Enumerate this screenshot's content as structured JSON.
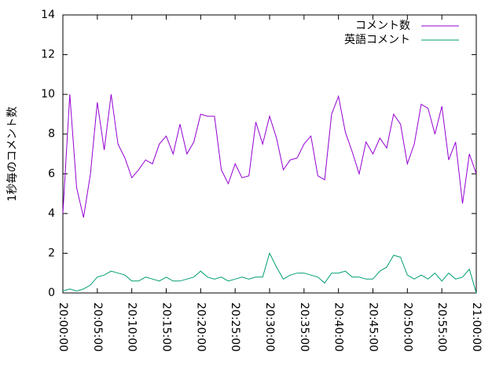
{
  "chart_data": {
    "type": "line",
    "y_label": "1秒毎のコメント数",
    "x": [
      "20:00:00",
      "20:01:00",
      "20:02:00",
      "20:03:00",
      "20:04:00",
      "20:05:00",
      "20:06:00",
      "20:07:00",
      "20:08:00",
      "20:09:00",
      "20:10:00",
      "20:11:00",
      "20:12:00",
      "20:13:00",
      "20:14:00",
      "20:15:00",
      "20:16:00",
      "20:17:00",
      "20:18:00",
      "20:19:00",
      "20:20:00",
      "20:21:00",
      "20:22:00",
      "20:23:00",
      "20:24:00",
      "20:25:00",
      "20:26:00",
      "20:27:00",
      "20:28:00",
      "20:29:00",
      "20:30:00",
      "20:31:00",
      "20:32:00",
      "20:33:00",
      "20:34:00",
      "20:35:00",
      "20:36:00",
      "20:37:00",
      "20:38:00",
      "20:39:00",
      "20:40:00",
      "20:41:00",
      "20:42:00",
      "20:43:00",
      "20:44:00",
      "20:45:00",
      "20:46:00",
      "20:47:00",
      "20:48:00",
      "20:49:00",
      "20:50:00",
      "20:51:00",
      "20:52:00",
      "20:53:00",
      "20:54:00",
      "20:55:00",
      "20:56:00",
      "20:57:00",
      "20:58:00",
      "20:59:00",
      "21:00:00"
    ],
    "series": [
      {
        "name": "コメント数",
        "color": "#9400d3",
        "values": [
          4.0,
          10.0,
          5.3,
          3.8,
          6.0,
          9.6,
          7.2,
          10.0,
          7.5,
          6.8,
          5.8,
          6.2,
          6.7,
          6.5,
          7.5,
          7.9,
          7.0,
          8.5,
          7.0,
          7.6,
          9.0,
          8.9,
          8.9,
          6.2,
          5.5,
          6.5,
          5.8,
          5.9,
          8.6,
          7.5,
          8.9,
          7.8,
          6.2,
          6.7,
          6.8,
          7.5,
          7.9,
          5.9,
          5.7,
          9.0,
          9.9,
          8.1,
          7.1,
          6.0,
          7.6,
          7.0,
          7.8,
          7.3,
          9.0,
          8.5,
          6.5,
          7.5,
          9.5,
          9.3,
          8.0,
          9.4,
          6.7,
          7.6,
          4.5,
          7.0,
          6.0
        ]
      },
      {
        "name": "英語コメント",
        "color": "#009e73",
        "values": [
          0.1,
          0.2,
          0.1,
          0.2,
          0.4,
          0.8,
          0.9,
          1.1,
          1.0,
          0.9,
          0.6,
          0.6,
          0.8,
          0.7,
          0.6,
          0.8,
          0.6,
          0.6,
          0.7,
          0.8,
          1.1,
          0.8,
          0.7,
          0.8,
          0.6,
          0.7,
          0.8,
          0.7,
          0.8,
          0.8,
          2.0,
          1.3,
          0.7,
          0.9,
          1.0,
          1.0,
          0.9,
          0.8,
          0.5,
          1.0,
          1.0,
          1.1,
          0.8,
          0.8,
          0.7,
          0.7,
          1.1,
          1.3,
          1.9,
          1.8,
          0.9,
          0.7,
          0.9,
          0.7,
          1.0,
          0.6,
          1.0,
          0.7,
          0.8,
          1.2,
          0.0
        ]
      }
    ],
    "ylim": [
      0,
      14
    ],
    "yticks": [
      0,
      2,
      4,
      6,
      8,
      10,
      12,
      14
    ],
    "xlim": [
      "20:00:00",
      "21:00:00"
    ],
    "xticks": [
      "20:00:00",
      "20:05:00",
      "20:10:00",
      "20:15:00",
      "20:20:00",
      "20:25:00",
      "20:30:00",
      "20:35:00",
      "20:40:00",
      "20:45:00",
      "20:50:00",
      "20:55:00",
      "21:00:00"
    ],
    "legend": "top-right"
  }
}
